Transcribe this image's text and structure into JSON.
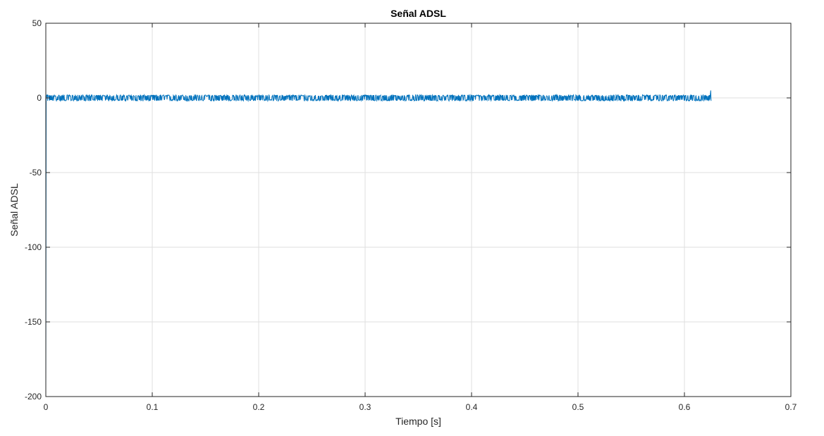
{
  "chart_data": {
    "type": "line",
    "title": "Señal ADSL",
    "xlabel": "Tiempo [s]",
    "ylabel": "Señal ADSL",
    "xlim": [
      0,
      0.7
    ],
    "ylim": [
      -200,
      50
    ],
    "xticks": [
      0,
      0.1,
      0.2,
      0.3,
      0.4,
      0.5,
      0.6,
      0.7
    ],
    "xtick_labels": [
      "0",
      "0.1",
      "0.2",
      "0.3",
      "0.4",
      "0.5",
      "0.6",
      "0.7"
    ],
    "yticks": [
      -200,
      -150,
      -100,
      -50,
      0,
      50
    ],
    "ytick_labels": [
      "-200",
      "-150",
      "-100",
      "-50",
      "0",
      "50"
    ],
    "grid": true,
    "series": [
      {
        "color": "#0072BD",
        "x_start": 0,
        "x_end": 0.625,
        "initial_spike_min": -200,
        "envelope_min": -2,
        "envelope_max": 2,
        "final_spike_max": 5
      }
    ]
  }
}
